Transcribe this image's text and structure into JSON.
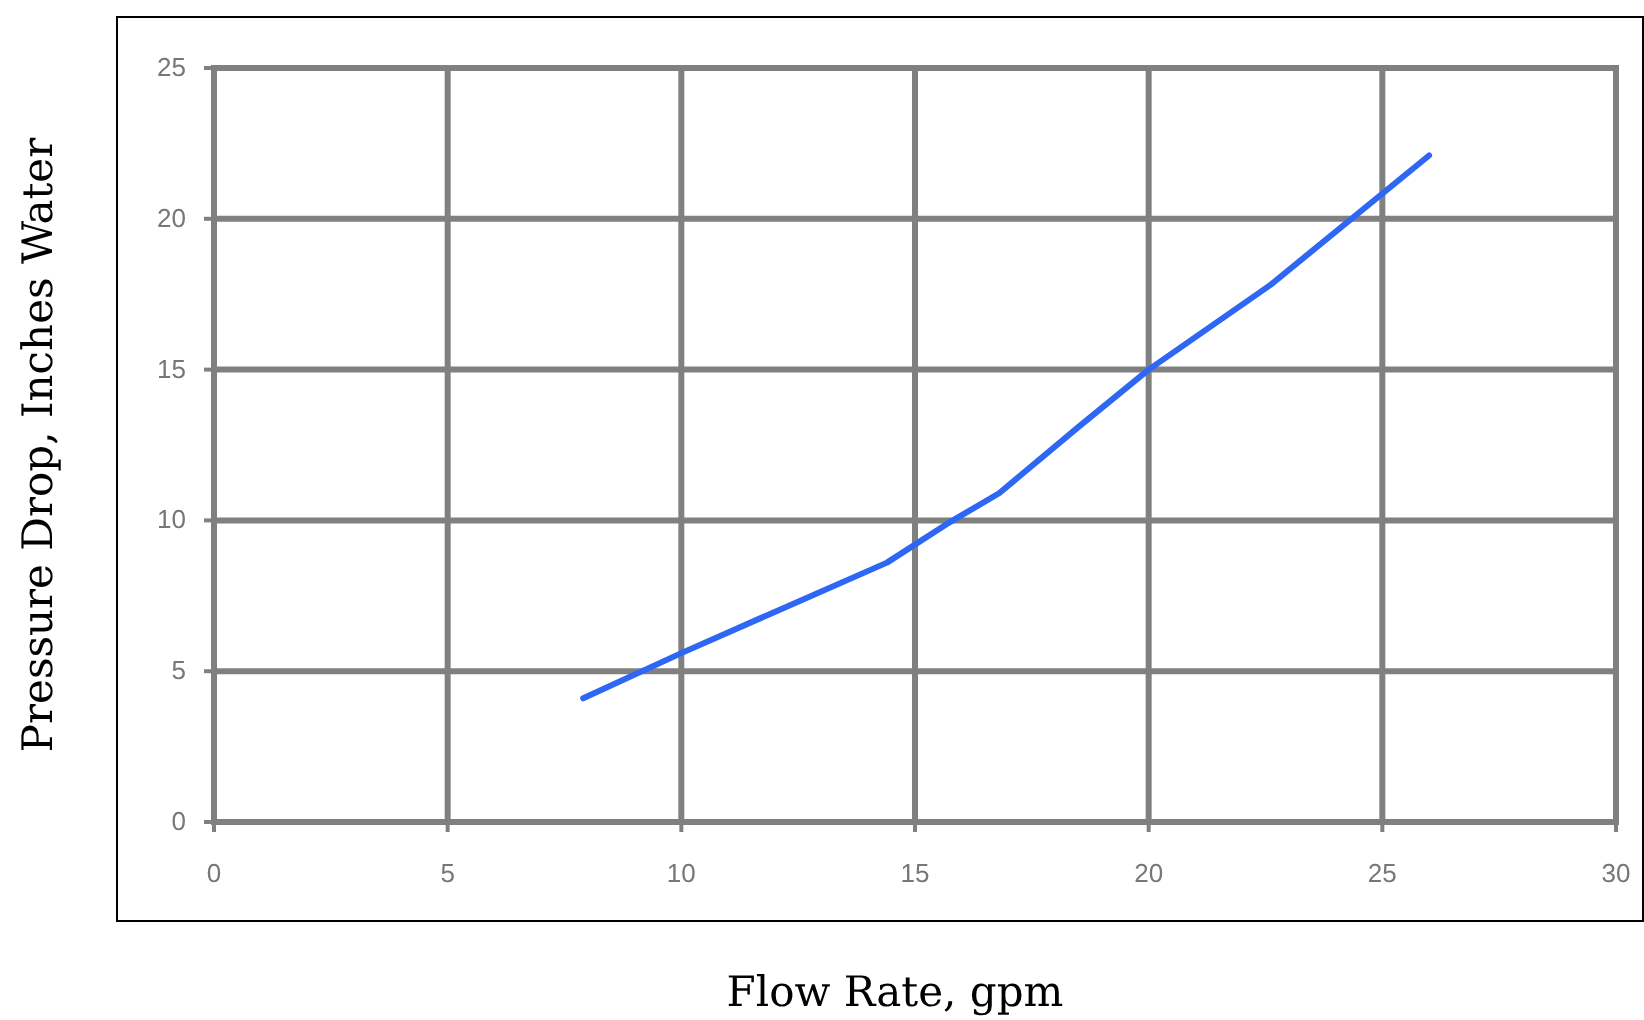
{
  "chart_data": {
    "type": "line",
    "xlabel": "Flow Rate, gpm",
    "ylabel": "Pressure Drop, Inches Water",
    "x": [
      7.9,
      10,
      11.9,
      14.4,
      15.7,
      16.8,
      18.5,
      20,
      22.6,
      26
    ],
    "series": [
      {
        "color": "#2f67f5",
        "values": [
          4.1,
          5.6,
          6.9,
          8.6,
          9.9,
          10.9,
          13.1,
          15,
          17.8,
          22.1
        ]
      }
    ],
    "xlim": [
      0,
      30
    ],
    "xticks": [
      0,
      5,
      10,
      15,
      20,
      25,
      30
    ],
    "ylim": [
      0,
      25
    ],
    "yticks": [
      0,
      5,
      10,
      15,
      20,
      25
    ],
    "grid": true,
    "marker": "none",
    "line_style": "solid"
  }
}
